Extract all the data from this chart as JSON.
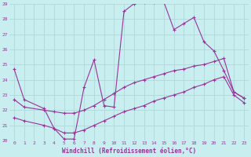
{
  "background_color": "#c8eef0",
  "grid_color": "#b0d8d8",
  "line_color": "#993399",
  "xlabel": "Windchill (Refroidissement éolien,°C)",
  "xlim": [
    -0.5,
    23.5
  ],
  "ylim": [
    20,
    29
  ],
  "yticks": [
    20,
    21,
    22,
    23,
    24,
    25,
    26,
    27,
    28,
    29
  ],
  "xticks": [
    0,
    1,
    2,
    3,
    4,
    5,
    6,
    7,
    8,
    9,
    10,
    11,
    12,
    13,
    14,
    15,
    16,
    17,
    18,
    19,
    20,
    21,
    22,
    23
  ],
  "series": [
    {
      "x": [
        0,
        1,
        3,
        4,
        5,
        6,
        7,
        8,
        9,
        10,
        11,
        12,
        13,
        14,
        15,
        16,
        17,
        18,
        19,
        20,
        21,
        22,
        23
      ],
      "y": [
        24.7,
        22.7,
        22.1,
        20.8,
        20.1,
        20.1,
        23.5,
        25.3,
        22.3,
        22.2,
        28.5,
        29.0,
        29.1,
        29.1,
        29.1,
        27.3,
        27.7,
        28.1,
        26.5,
        25.9,
        24.6,
        23.2,
        22.8
      ]
    },
    {
      "x": [
        0,
        1,
        3,
        4,
        5,
        6,
        7,
        8,
        9,
        10,
        11,
        12,
        13,
        14,
        15,
        16,
        17,
        18,
        19,
        20,
        21,
        22,
        23
      ],
      "y": [
        22.7,
        22.2,
        22.0,
        21.9,
        21.8,
        21.8,
        22.0,
        22.3,
        22.7,
        23.1,
        23.5,
        23.8,
        24.0,
        24.2,
        24.4,
        24.6,
        24.7,
        24.9,
        25.0,
        25.2,
        25.4,
        23.2,
        22.8
      ]
    },
    {
      "x": [
        0,
        1,
        3,
        4,
        5,
        6,
        7,
        8,
        9,
        10,
        11,
        12,
        13,
        14,
        15,
        16,
        17,
        18,
        19,
        20,
        21,
        22,
        23
      ],
      "y": [
        21.5,
        21.3,
        21.0,
        20.8,
        20.5,
        20.5,
        20.7,
        21.0,
        21.3,
        21.6,
        21.9,
        22.1,
        22.3,
        22.6,
        22.8,
        23.0,
        23.2,
        23.5,
        23.7,
        24.0,
        24.2,
        23.0,
        22.5
      ]
    }
  ]
}
